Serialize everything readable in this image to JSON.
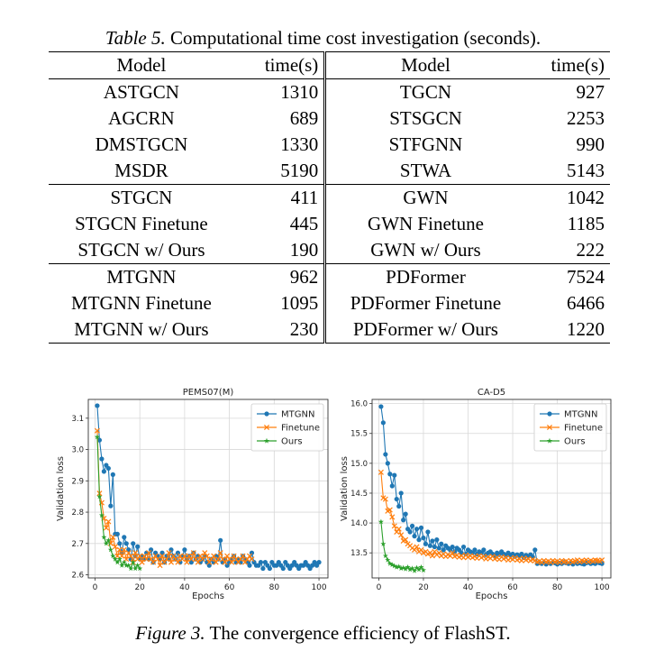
{
  "table": {
    "caption_label": "Table 5.",
    "caption_text": " Computational time cost investigation (seconds).",
    "headers": [
      "Model",
      "time(s)",
      "Model",
      "time(s)"
    ],
    "groups": [
      [
        [
          "ASTGCN",
          "1310",
          "TGCN",
          "927"
        ],
        [
          "AGCRN",
          "689",
          "STSGCN",
          "2253"
        ],
        [
          "DMSTGCN",
          "1330",
          "STFGNN",
          "990"
        ],
        [
          "MSDR",
          "5190",
          "STWA",
          "5143"
        ]
      ],
      [
        [
          "STGCN",
          "411",
          "GWN",
          "1042"
        ],
        [
          "STGCN Finetune",
          "445",
          "GWN Finetune",
          "1185"
        ],
        [
          "STGCN w/ Ours",
          "190",
          "GWN w/ Ours",
          "222"
        ]
      ],
      [
        [
          "MTGNN",
          "962",
          "PDFormer",
          "7524"
        ],
        [
          "MTGNN Finetune",
          "1095",
          "PDFormer Finetune",
          "6466"
        ],
        [
          "MTGNN w/ Ours",
          "230",
          "PDFormer w/ Ours",
          "1220"
        ]
      ]
    ]
  },
  "figure": {
    "caption_label": "Figure 3.",
    "caption_text": " The convergence efficiency of FlashST."
  },
  "chart_data": [
    {
      "type": "line",
      "title": "PEMS07(M)",
      "xlabel": "Epochs",
      "ylabel": "Validation loss",
      "xlim": [
        -3,
        104
      ],
      "ylim": [
        2.59,
        3.16
      ],
      "xticks": [
        0,
        20,
        40,
        60,
        80,
        100
      ],
      "yticks": [
        2.6,
        2.7,
        2.8,
        2.9,
        3.0,
        3.1
      ],
      "ytick_labels": [
        "2.6",
        "2.7",
        "2.8",
        "2.9",
        "3.0",
        "3.1"
      ],
      "grid": true,
      "legend": "top-right",
      "series": [
        {
          "name": "MTGNN",
          "color": "#1f77b4",
          "marker": "circle",
          "x": [
            1,
            2,
            3,
            4,
            5,
            6,
            7,
            8,
            9,
            10,
            11,
            12,
            13,
            14,
            15,
            16,
            17,
            18,
            19,
            20,
            21,
            22,
            23,
            24,
            25,
            26,
            27,
            28,
            29,
            30,
            31,
            32,
            33,
            34,
            35,
            36,
            37,
            38,
            39,
            40,
            41,
            42,
            43,
            44,
            45,
            46,
            47,
            48,
            49,
            50,
            51,
            52,
            53,
            54,
            55,
            56,
            57,
            58,
            59,
            60,
            61,
            62,
            63,
            64,
            65,
            66,
            67,
            68,
            69,
            70,
            71,
            72,
            73,
            74,
            75,
            76,
            77,
            78,
            79,
            80,
            81,
            82,
            83,
            84,
            85,
            86,
            87,
            88,
            89,
            90,
            91,
            92,
            93,
            94,
            95,
            96,
            97,
            98,
            99,
            100
          ],
          "y": [
            3.14,
            3.03,
            2.97,
            2.93,
            2.95,
            2.94,
            2.82,
            2.92,
            2.73,
            2.73,
            2.7,
            2.67,
            2.72,
            2.7,
            2.68,
            2.65,
            2.7,
            2.66,
            2.69,
            2.65,
            2.66,
            2.65,
            2.67,
            2.65,
            2.68,
            2.64,
            2.67,
            2.66,
            2.65,
            2.67,
            2.64,
            2.66,
            2.65,
            2.68,
            2.66,
            2.65,
            2.67,
            2.64,
            2.66,
            2.68,
            2.65,
            2.66,
            2.64,
            2.67,
            2.65,
            2.66,
            2.64,
            2.65,
            2.66,
            2.64,
            2.63,
            2.65,
            2.64,
            2.66,
            2.65,
            2.71,
            2.64,
            2.65,
            2.63,
            2.64,
            2.65,
            2.66,
            2.64,
            2.65,
            2.64,
            2.66,
            2.65,
            2.64,
            2.63,
            2.67,
            2.64,
            2.63,
            2.63,
            2.64,
            2.62,
            2.64,
            2.63,
            2.62,
            2.64,
            2.63,
            2.63,
            2.64,
            2.63,
            2.62,
            2.64,
            2.63,
            2.62,
            2.63,
            2.64,
            2.63,
            2.62,
            2.63,
            2.63,
            2.64,
            2.63,
            2.62,
            2.63,
            2.64,
            2.63,
            2.64
          ]
        },
        {
          "name": "Finetune",
          "color": "#ff7f0e",
          "marker": "x",
          "x": [
            1,
            2,
            3,
            4,
            5,
            6,
            7,
            8,
            9,
            10,
            11,
            12,
            13,
            14,
            15,
            16,
            17,
            18,
            19,
            20,
            21,
            22,
            23,
            24,
            25,
            26,
            27,
            28,
            29,
            30,
            31,
            32,
            33,
            34,
            35,
            36,
            37,
            38,
            39,
            40,
            41,
            42,
            43,
            44,
            45,
            46,
            47,
            48,
            49,
            50,
            51,
            52,
            53,
            54,
            55,
            56,
            57,
            58,
            59,
            60,
            61,
            62,
            63,
            64,
            65,
            66,
            67,
            68,
            69,
            70
          ],
          "y": [
            3.06,
            2.86,
            2.83,
            2.78,
            2.75,
            2.77,
            2.7,
            2.72,
            2.69,
            2.66,
            2.68,
            2.66,
            2.68,
            2.65,
            2.67,
            2.66,
            2.64,
            2.67,
            2.65,
            2.66,
            2.64,
            2.66,
            2.65,
            2.67,
            2.65,
            2.64,
            2.66,
            2.65,
            2.63,
            2.66,
            2.64,
            2.65,
            2.67,
            2.64,
            2.66,
            2.65,
            2.64,
            2.66,
            2.65,
            2.66,
            2.64,
            2.66,
            2.65,
            2.67,
            2.65,
            2.64,
            2.66,
            2.65,
            2.67,
            2.66,
            2.64,
            2.65,
            2.66,
            2.64,
            2.65,
            2.67,
            2.65,
            2.64,
            2.66,
            2.65,
            2.64,
            2.66,
            2.65,
            2.64,
            2.65,
            2.66,
            2.64,
            2.65,
            2.66,
            2.65
          ]
        },
        {
          "name": "Ours",
          "color": "#2ca02c",
          "marker": "star",
          "x": [
            1,
            2,
            3,
            4,
            5,
            6,
            7,
            8,
            9,
            10,
            11,
            12,
            13,
            14,
            15,
            16,
            17,
            18,
            19,
            20
          ],
          "y": [
            3.04,
            2.85,
            2.79,
            2.72,
            2.7,
            2.71,
            2.68,
            2.66,
            2.65,
            2.64,
            2.65,
            2.63,
            2.64,
            2.63,
            2.63,
            2.62,
            2.64,
            2.62,
            2.63,
            2.62
          ]
        }
      ]
    },
    {
      "type": "line",
      "title": "CA-D5",
      "xlabel": "Epochs",
      "ylabel": "Validation loss",
      "xlim": [
        -3,
        104
      ],
      "ylim": [
        13.08,
        16.07
      ],
      "xticks": [
        0,
        20,
        40,
        60,
        80,
        100
      ],
      "yticks": [
        13.5,
        14.0,
        14.5,
        15.0,
        15.5,
        16.0
      ],
      "ytick_labels": [
        "13.5",
        "14.0",
        "14.5",
        "15.0",
        "15.5",
        "16.0"
      ],
      "grid": true,
      "legend": "top-right",
      "series": [
        {
          "name": "MTGNN",
          "color": "#1f77b4",
          "marker": "circle",
          "x": [
            1,
            2,
            3,
            4,
            5,
            6,
            7,
            8,
            9,
            10,
            11,
            12,
            13,
            14,
            15,
            16,
            17,
            18,
            19,
            20,
            21,
            22,
            23,
            24,
            25,
            26,
            27,
            28,
            29,
            30,
            31,
            32,
            33,
            34,
            35,
            36,
            37,
            38,
            39,
            40,
            41,
            42,
            43,
            44,
            45,
            46,
            47,
            48,
            49,
            50,
            51,
            52,
            53,
            54,
            55,
            56,
            57,
            58,
            59,
            60,
            61,
            62,
            63,
            64,
            65,
            66,
            67,
            68,
            69,
            70,
            71,
            72,
            73,
            74,
            75,
            76,
            77,
            78,
            79,
            80,
            81,
            82,
            83,
            84,
            85,
            86,
            87,
            88,
            89,
            90,
            91,
            92,
            93,
            94,
            95,
            96,
            97,
            98,
            99,
            100
          ],
          "y": [
            15.95,
            15.68,
            15.15,
            15.0,
            14.82,
            14.62,
            14.8,
            14.4,
            14.28,
            14.5,
            14.05,
            14.15,
            13.9,
            13.85,
            13.95,
            13.78,
            13.9,
            13.72,
            13.92,
            13.75,
            13.65,
            13.85,
            13.62,
            13.7,
            13.6,
            13.72,
            13.58,
            13.65,
            13.55,
            13.62,
            13.58,
            13.55,
            13.6,
            13.52,
            13.58,
            13.55,
            13.5,
            13.6,
            13.48,
            13.55,
            13.52,
            13.5,
            13.55,
            13.48,
            13.52,
            13.5,
            13.55,
            13.47,
            13.5,
            13.52,
            13.48,
            13.45,
            13.5,
            13.47,
            13.52,
            13.48,
            13.45,
            13.5,
            13.46,
            13.48,
            13.44,
            13.47,
            13.45,
            13.48,
            13.42,
            13.46,
            13.44,
            13.47,
            13.43,
            13.55,
            13.32,
            13.33,
            13.32,
            13.34,
            13.31,
            13.33,
            13.32,
            13.34,
            13.33,
            13.31,
            13.33,
            13.32,
            13.34,
            13.33,
            13.32,
            13.33,
            13.31,
            13.34,
            13.32,
            13.33,
            13.32,
            13.31,
            13.33,
            13.34,
            13.32,
            13.33,
            13.32,
            13.34,
            13.33,
            13.32
          ]
        },
        {
          "name": "Finetune",
          "color": "#ff7f0e",
          "marker": "x",
          "x": [
            1,
            2,
            3,
            4,
            5,
            6,
            7,
            8,
            9,
            10,
            11,
            12,
            13,
            14,
            15,
            16,
            17,
            18,
            19,
            20,
            21,
            22,
            23,
            24,
            25,
            26,
            27,
            28,
            29,
            30,
            31,
            32,
            33,
            34,
            35,
            36,
            37,
            38,
            39,
            40,
            41,
            42,
            43,
            44,
            45,
            46,
            47,
            48,
            49,
            50,
            51,
            52,
            53,
            54,
            55,
            56,
            57,
            58,
            59,
            60,
            61,
            62,
            63,
            64,
            65,
            66,
            67,
            68,
            69,
            70,
            71,
            72,
            73,
            74,
            75,
            76,
            77,
            78,
            79,
            80,
            81,
            82,
            83,
            84,
            85,
            86,
            87,
            88,
            89,
            90,
            91,
            92,
            93,
            94,
            95,
            96,
            97,
            98,
            99,
            100
          ],
          "y": [
            14.85,
            14.42,
            14.4,
            14.2,
            14.22,
            14.1,
            13.95,
            13.85,
            13.9,
            13.8,
            13.7,
            13.72,
            13.65,
            13.62,
            13.58,
            13.55,
            13.6,
            13.52,
            13.55,
            13.5,
            13.52,
            13.48,
            13.5,
            13.45,
            13.52,
            13.47,
            13.5,
            13.45,
            13.48,
            13.44,
            13.47,
            13.45,
            13.5,
            13.44,
            13.46,
            13.43,
            13.45,
            13.42,
            13.46,
            13.43,
            13.45,
            13.42,
            13.44,
            13.41,
            13.45,
            13.42,
            13.44,
            13.4,
            13.43,
            13.41,
            13.44,
            13.4,
            13.42,
            13.39,
            13.43,
            13.4,
            13.42,
            13.38,
            13.41,
            13.39,
            13.42,
            13.38,
            13.4,
            13.37,
            13.41,
            13.38,
            13.4,
            13.37,
            13.39,
            13.37,
            13.35,
            13.36,
            13.34,
            13.37,
            13.35,
            13.36,
            13.34,
            13.37,
            13.35,
            13.36,
            13.34,
            13.37,
            13.35,
            13.36,
            13.34,
            13.37,
            13.35,
            13.36,
            13.38,
            13.35,
            13.37,
            13.36,
            13.38,
            13.35,
            13.37,
            13.36,
            13.38,
            13.37,
            13.36,
            13.38
          ]
        },
        {
          "name": "Ours",
          "color": "#2ca02c",
          "marker": "star",
          "x": [
            1,
            2,
            3,
            4,
            5,
            6,
            7,
            8,
            9,
            10,
            11,
            12,
            13,
            14,
            15,
            16,
            17,
            18,
            19,
            20
          ],
          "y": [
            14.02,
            13.65,
            13.45,
            13.38,
            13.32,
            13.3,
            13.28,
            13.26,
            13.27,
            13.24,
            13.25,
            13.23,
            13.26,
            13.22,
            13.24,
            13.2,
            13.25,
            13.22,
            13.26,
            13.21
          ]
        }
      ]
    }
  ]
}
